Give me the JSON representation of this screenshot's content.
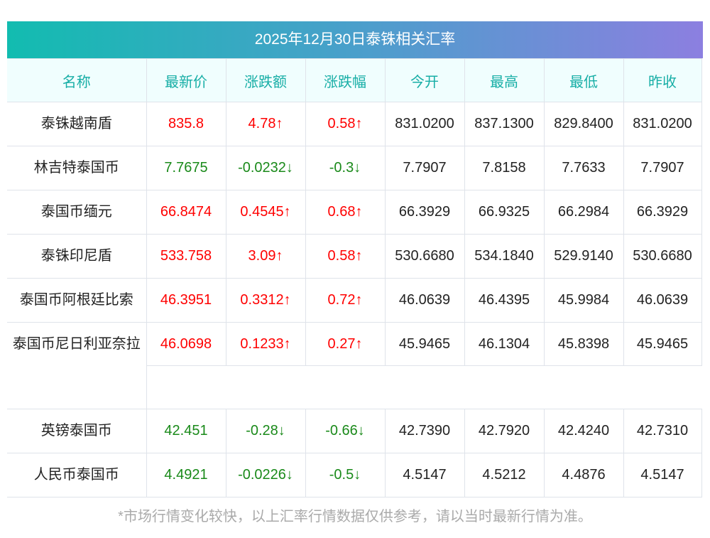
{
  "title": "2025年12月30日泰铢相关汇率",
  "headers": [
    "名称",
    "最新价",
    "涨跌额",
    "涨跌幅",
    "今开",
    "最高",
    "最低",
    "昨收"
  ],
  "rows": [
    {
      "name": "泰铢越南盾",
      "latest": "835.8",
      "change": "4.78↑",
      "pct": "0.58↑",
      "open": "831.0200",
      "high": "837.1300",
      "low": "829.8400",
      "prev": "831.0200",
      "dir": "up"
    },
    {
      "name": "林吉特泰国币",
      "latest": "7.7675",
      "change": "-0.0232↓",
      "pct": "-0.3↓",
      "open": "7.7907",
      "high": "7.8158",
      "low": "7.7633",
      "prev": "7.7907",
      "dir": "down"
    },
    {
      "name": "泰国币缅元",
      "latest": "66.8474",
      "change": "0.4545↑",
      "pct": "0.68↑",
      "open": "66.3929",
      "high": "66.9325",
      "low": "66.2984",
      "prev": "66.3929",
      "dir": "up"
    },
    {
      "name": "泰铢印尼盾",
      "latest": "533.758",
      "change": "3.09↑",
      "pct": "0.58↑",
      "open": "530.6680",
      "high": "534.1840",
      "low": "529.9140",
      "prev": "530.6680",
      "dir": "up"
    },
    {
      "name": "泰国币阿根廷比索",
      "latest": "46.3951",
      "change": "0.3312↑",
      "pct": "0.72↑",
      "open": "46.0639",
      "high": "46.4395",
      "low": "45.9984",
      "prev": "46.0639",
      "dir": "up"
    },
    {
      "name": "泰国币尼日利亚奈拉",
      "latest": "46.0698",
      "change": "0.1233↑",
      "pct": "0.27↑",
      "open": "45.9465",
      "high": "46.1304",
      "low": "45.8398",
      "prev": "45.9465",
      "dir": "up"
    },
    {
      "name": "英镑泰国币",
      "latest": "42.451",
      "change": "-0.28↓",
      "pct": "-0.66↓",
      "open": "42.7390",
      "high": "42.7920",
      "low": "42.4240",
      "prev": "42.7310",
      "dir": "down"
    },
    {
      "name": "人民币泰国币",
      "latest": "4.4921",
      "change": "-0.0226↓",
      "pct": "-0.5↓",
      "open": "4.5147",
      "high": "4.5212",
      "low": "4.4876",
      "prev": "4.5147",
      "dir": "down"
    }
  ],
  "note": "*市场行情变化较快，以上汇率行情数据仅供参考，请以当时最新行情为准。"
}
